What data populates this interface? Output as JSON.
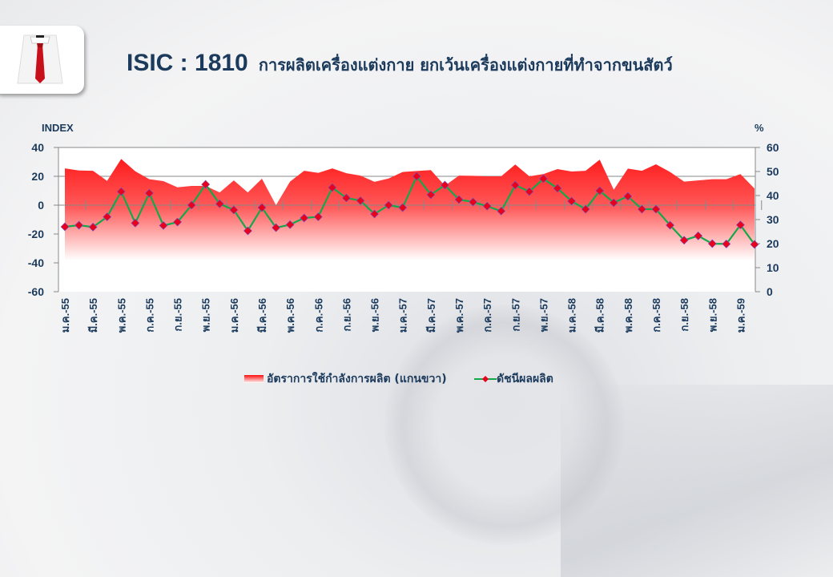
{
  "header": {
    "code": "ISIC : 1810",
    "description": "การผลิตเครื่องแต่งกาย ยกเว้นเครื่องแต่งกายที่ทำจากขนสัตว์",
    "icon": "shirt-tie-icon"
  },
  "chart_data": {
    "type": "line+area",
    "left_axis_label": "INDEX",
    "right_axis_label": "%",
    "left_ylim": [
      -60,
      40
    ],
    "left_ticks": [
      40,
      20,
      0,
      -20,
      -40,
      -60
    ],
    "right_ylim": [
      0,
      60
    ],
    "right_ticks": [
      60,
      50,
      40,
      30,
      20,
      10,
      0
    ],
    "grid": true,
    "legend_placement": "bottom",
    "colors": {
      "area": "#ff1a1a",
      "line": "#14a84a",
      "marker": "#e8001c",
      "text": "#1b3a5c"
    },
    "x": [
      "ม.ค.-55",
      "ก.พ.-55",
      "มี.ค.-55",
      "เม.ย.-55",
      "พ.ค.-55",
      "มิ.ย.-55",
      "ก.ค.-55",
      "ส.ค.-55",
      "ก.ย.-55",
      "ต.ค.-55",
      "พ.ย.-55",
      "ธ.ค.-55",
      "ม.ค.-56",
      "ก.พ.-56",
      "มี.ค.-56",
      "เม.ย.-56",
      "พ.ค.-56",
      "มิ.ย.-56",
      "ก.ค.-56",
      "ส.ค.-56",
      "ก.ย.-56",
      "ต.ค.-56",
      "พ.ย.-56",
      "ธ.ค.-56",
      "ม.ค.-57",
      "ก.พ.-57",
      "มี.ค.-57",
      "เม.ย.-57",
      "พ.ค.-57",
      "มิ.ย.-57",
      "ก.ค.-57",
      "ส.ค.-57",
      "ก.ย.-57",
      "ต.ค.-57",
      "พ.ย.-57",
      "ธ.ค.-57",
      "ม.ค.-58",
      "ก.พ.-58",
      "มี.ค.-58",
      "เม.ย.-58",
      "พ.ค.-58",
      "มิ.ย.-58",
      "ก.ค.-58",
      "ส.ค.-58",
      "ก.ย.-58",
      "ต.ค.-58",
      "พ.ย.-58",
      "ธ.ค.-58",
      "ม.ค.-59",
      "ก.พ.-59"
    ],
    "tick_labels": [
      "ม.ค.-55",
      "มี.ค.-55",
      "พ.ค.-55",
      "ก.ค.-55",
      "ก.ย.-55",
      "พ.ย.-55",
      "ม.ค.-56",
      "มี.ค.-56",
      "พ.ค.-56",
      "ก.ค.-56",
      "ก.ย.-56",
      "พ.ย.-56",
      "ม.ค.-57",
      "มี.ค.-57",
      "พ.ค.-57",
      "ก.ค.-57",
      "ก.ย.-57",
      "พ.ย.-57",
      "ม.ค.-58",
      "มี.ค.-58",
      "พ.ค.-58",
      "ก.ค.-58",
      "ก.ย.-58",
      "พ.ย.-58",
      "ม.ค.-59"
    ],
    "series": [
      {
        "name": "อัตราการใช้กำลังการผลิต (แกนขวา)",
        "axis": "right",
        "kind": "area",
        "values": [
          51.3,
          50.4,
          50.3,
          46.1,
          55.2,
          50.1,
          46.8,
          46.0,
          43.4,
          44.0,
          44.0,
          41.3,
          46.3,
          41.3,
          47.0,
          36.0,
          45.8,
          50.3,
          49.4,
          51.3,
          49.3,
          48.3,
          45.7,
          47.1,
          49.8,
          50.2,
          50.6,
          44.1,
          48.3,
          48.2,
          48.0,
          48.0,
          52.9,
          48.0,
          48.9,
          51.0,
          50.0,
          50.3,
          54.9,
          42.4,
          51.2,
          50.3,
          53.0,
          49.8,
          45.8,
          46.3,
          46.8,
          46.8,
          48.9,
          42.9
        ]
      },
      {
        "name": "ดัชนีผลผลิต",
        "axis": "left",
        "kind": "line",
        "values": [
          -15.0,
          -13.9,
          -15.2,
          -8.1,
          9.4,
          -12.4,
          8.3,
          -14.1,
          -11.7,
          0.0,
          14.4,
          0.9,
          -3.3,
          -17.8,
          -1.7,
          -15.6,
          -13.5,
          -8.9,
          -8.1,
          12.2,
          5.0,
          3.1,
          -6.1,
          0.0,
          -1.7,
          20.0,
          7.2,
          13.9,
          3.9,
          2.2,
          -0.7,
          -4.1,
          13.9,
          9.4,
          18.3,
          11.7,
          2.8,
          -2.8,
          10.0,
          1.7,
          6.1,
          -2.8,
          -2.8,
          -13.9,
          -24.3,
          -21.3,
          -26.7,
          -26.9,
          -13.7,
          -27.2
        ]
      }
    ]
  }
}
